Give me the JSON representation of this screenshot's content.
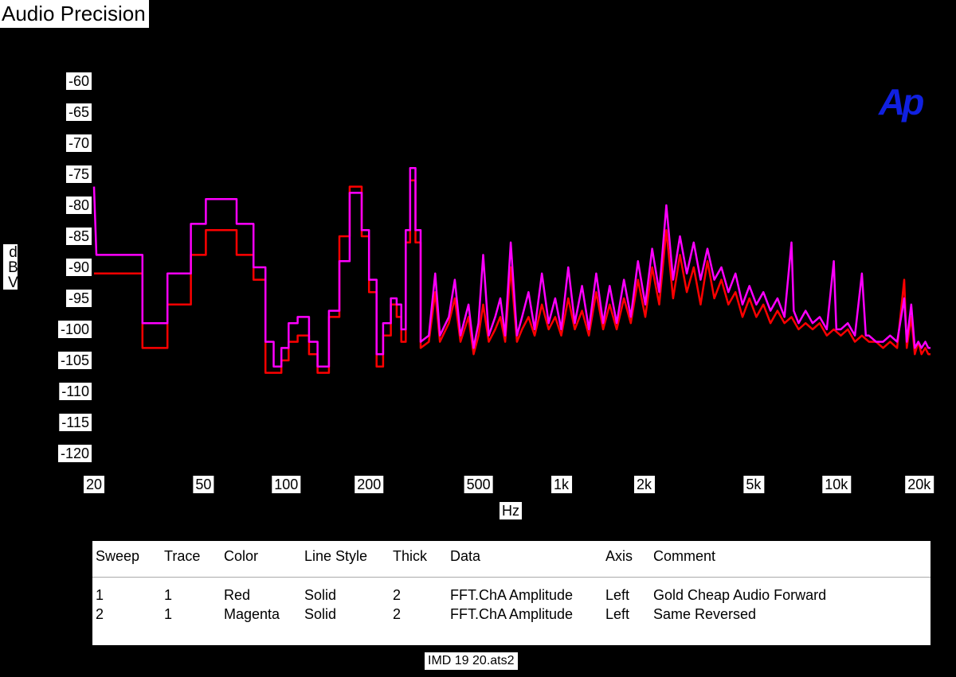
{
  "app_title": "Audio Precision",
  "logo_text": "Ap",
  "footer_file": "IMD 19 20.ats2",
  "chart_data": {
    "type": "line",
    "xscale": "log",
    "xlabel": "Hz",
    "ylabel": "dBV",
    "xlim": [
      20,
      22000
    ],
    "ylim": [
      -120,
      -60
    ],
    "x_ticks": [
      {
        "value": 20,
        "label": "20"
      },
      {
        "value": 50,
        "label": "50"
      },
      {
        "value": 100,
        "label": "100"
      },
      {
        "value": 200,
        "label": "200"
      },
      {
        "value": 500,
        "label": "500"
      },
      {
        "value": 1000,
        "label": "1k"
      },
      {
        "value": 2000,
        "label": "2k"
      },
      {
        "value": 5000,
        "label": "5k"
      },
      {
        "value": 10000,
        "label": "10k"
      },
      {
        "value": 20000,
        "label": "20k"
      }
    ],
    "y_ticks": [
      -60,
      -65,
      -70,
      -75,
      -80,
      -85,
      -90,
      -95,
      -100,
      -105,
      -110,
      -115,
      -120
    ],
    "series": [
      {
        "color": "#ff0000",
        "values": [
          [
            20,
            -91
          ],
          [
            30,
            -91
          ],
          [
            30,
            -103
          ],
          [
            37,
            -103
          ],
          [
            37,
            -96
          ],
          [
            45,
            -96
          ],
          [
            45,
            -88
          ],
          [
            51,
            -88
          ],
          [
            51,
            -84
          ],
          [
            66,
            -84
          ],
          [
            66,
            -88
          ],
          [
            76,
            -88
          ],
          [
            76,
            -92
          ],
          [
            84,
            -92
          ],
          [
            84,
            -107
          ],
          [
            96,
            -107
          ],
          [
            96,
            -105
          ],
          [
            102,
            -105
          ],
          [
            102,
            -102
          ],
          [
            110,
            -102
          ],
          [
            110,
            -101
          ],
          [
            121,
            -101
          ],
          [
            121,
            -104
          ],
          [
            130,
            -104
          ],
          [
            130,
            -107
          ],
          [
            143,
            -107
          ],
          [
            143,
            -98
          ],
          [
            156,
            -98
          ],
          [
            156,
            -85
          ],
          [
            170,
            -85
          ],
          [
            170,
            -77
          ],
          [
            188,
            -77
          ],
          [
            188,
            -85
          ],
          [
            200,
            -85
          ],
          [
            200,
            -94
          ],
          [
            213,
            -94
          ],
          [
            213,
            -106
          ],
          [
            225,
            -106
          ],
          [
            225,
            -101
          ],
          [
            240,
            -101
          ],
          [
            240,
            -96
          ],
          [
            252,
            -96
          ],
          [
            252,
            -98
          ],
          [
            262,
            -98
          ],
          [
            262,
            -102
          ],
          [
            272,
            -102
          ],
          [
            272,
            -86
          ],
          [
            282,
            -86
          ],
          [
            282,
            -76
          ],
          [
            295,
            -76
          ],
          [
            295,
            -86
          ],
          [
            308,
            -86
          ],
          [
            308,
            -103
          ],
          [
            330,
            -102
          ],
          [
            348,
            -94
          ],
          [
            362,
            -102
          ],
          [
            390,
            -99
          ],
          [
            410,
            -95
          ],
          [
            430,
            -102
          ],
          [
            460,
            -98
          ],
          [
            480,
            -104
          ],
          [
            500,
            -101
          ],
          [
            520,
            -96
          ],
          [
            545,
            -102
          ],
          [
            575,
            -100
          ],
          [
            600,
            -98
          ],
          [
            625,
            -102
          ],
          [
            655,
            -90
          ],
          [
            690,
            -102
          ],
          [
            720,
            -100
          ],
          [
            760,
            -98
          ],
          [
            800,
            -101
          ],
          [
            850,
            -96
          ],
          [
            900,
            -100
          ],
          [
            950,
            -98
          ],
          [
            1000,
            -101
          ],
          [
            1060,
            -95
          ],
          [
            1120,
            -100
          ],
          [
            1190,
            -97
          ],
          [
            1260,
            -101
          ],
          [
            1340,
            -94
          ],
          [
            1420,
            -100
          ],
          [
            1500,
            -96
          ],
          [
            1590,
            -100
          ],
          [
            1690,
            -95
          ],
          [
            1790,
            -99
          ],
          [
            1900,
            -92
          ],
          [
            2020,
            -98
          ],
          [
            2140,
            -90
          ],
          [
            2270,
            -96
          ],
          [
            2410,
            -84
          ],
          [
            2550,
            -95
          ],
          [
            2700,
            -88
          ],
          [
            2860,
            -94
          ],
          [
            3030,
            -90
          ],
          [
            3210,
            -96
          ],
          [
            3400,
            -89
          ],
          [
            3600,
            -95
          ],
          [
            3820,
            -92
          ],
          [
            4050,
            -96
          ],
          [
            4300,
            -94
          ],
          [
            4560,
            -98
          ],
          [
            4830,
            -95
          ],
          [
            5120,
            -98
          ],
          [
            5430,
            -96
          ],
          [
            5760,
            -99
          ],
          [
            6110,
            -97
          ],
          [
            6480,
            -99
          ],
          [
            6870,
            -98
          ],
          [
            7290,
            -100
          ],
          [
            7730,
            -99
          ],
          [
            8200,
            -100
          ],
          [
            8700,
            -99
          ],
          [
            9230,
            -101
          ],
          [
            9790,
            -100
          ],
          [
            10380,
            -101
          ],
          [
            11010,
            -100
          ],
          [
            11680,
            -102
          ],
          [
            12390,
            -101
          ],
          [
            13140,
            -102
          ],
          [
            13940,
            -102
          ],
          [
            14790,
            -103
          ],
          [
            15690,
            -102
          ],
          [
            16640,
            -103
          ],
          [
            17650,
            -92
          ],
          [
            18030,
            -103
          ],
          [
            18720,
            -98
          ],
          [
            19290,
            -104
          ],
          [
            19860,
            -102
          ],
          [
            20400,
            -104
          ],
          [
            21060,
            -103
          ],
          [
            21600,
            -104
          ],
          [
            22000,
            -104
          ]
        ]
      },
      {
        "color": "#ff00ff",
        "values": [
          [
            20,
            -77
          ],
          [
            20.4,
            -88
          ],
          [
            30,
            -88
          ],
          [
            30,
            -99
          ],
          [
            37,
            -99
          ],
          [
            37,
            -91
          ],
          [
            45,
            -91
          ],
          [
            45,
            -83
          ],
          [
            51,
            -83
          ],
          [
            51,
            -79
          ],
          [
            66,
            -79
          ],
          [
            66,
            -83
          ],
          [
            76,
            -83
          ],
          [
            76,
            -90
          ],
          [
            84,
            -90
          ],
          [
            84,
            -102
          ],
          [
            90,
            -102
          ],
          [
            90,
            -106
          ],
          [
            96,
            -106
          ],
          [
            96,
            -103
          ],
          [
            102,
            -103
          ],
          [
            102,
            -99
          ],
          [
            110,
            -99
          ],
          [
            110,
            -98
          ],
          [
            121,
            -98
          ],
          [
            121,
            -102
          ],
          [
            130,
            -102
          ],
          [
            130,
            -106
          ],
          [
            143,
            -106
          ],
          [
            143,
            -97
          ],
          [
            156,
            -97
          ],
          [
            156,
            -89
          ],
          [
            170,
            -89
          ],
          [
            170,
            -78
          ],
          [
            188,
            -78
          ],
          [
            188,
            -84
          ],
          [
            200,
            -84
          ],
          [
            200,
            -92
          ],
          [
            213,
            -92
          ],
          [
            213,
            -104
          ],
          [
            225,
            -104
          ],
          [
            225,
            -99
          ],
          [
            240,
            -99
          ],
          [
            240,
            -95
          ],
          [
            252,
            -95
          ],
          [
            252,
            -96
          ],
          [
            262,
            -96
          ],
          [
            262,
            -100
          ],
          [
            272,
            -100
          ],
          [
            272,
            -84
          ],
          [
            282,
            -84
          ],
          [
            282,
            -74
          ],
          [
            295,
            -74
          ],
          [
            295,
            -84
          ],
          [
            308,
            -84
          ],
          [
            308,
            -102
          ],
          [
            330,
            -101
          ],
          [
            348,
            -91
          ],
          [
            362,
            -101
          ],
          [
            390,
            -98
          ],
          [
            410,
            -92
          ],
          [
            430,
            -101
          ],
          [
            460,
            -96
          ],
          [
            480,
            -103
          ],
          [
            500,
            -99
          ],
          [
            520,
            -88
          ],
          [
            545,
            -101
          ],
          [
            575,
            -98
          ],
          [
            600,
            -95
          ],
          [
            625,
            -101
          ],
          [
            655,
            -86
          ],
          [
            690,
            -101
          ],
          [
            720,
            -98
          ],
          [
            760,
            -94
          ],
          [
            800,
            -100
          ],
          [
            850,
            -91
          ],
          [
            900,
            -99
          ],
          [
            950,
            -95
          ],
          [
            1000,
            -100
          ],
          [
            1060,
            -90
          ],
          [
            1120,
            -99
          ],
          [
            1190,
            -93
          ],
          [
            1260,
            -100
          ],
          [
            1340,
            -91
          ],
          [
            1420,
            -99
          ],
          [
            1500,
            -93
          ],
          [
            1590,
            -99
          ],
          [
            1690,
            -92
          ],
          [
            1790,
            -98
          ],
          [
            1900,
            -89
          ],
          [
            2020,
            -96
          ],
          [
            2140,
            -87
          ],
          [
            2270,
            -94
          ],
          [
            2410,
            -80
          ],
          [
            2550,
            -92
          ],
          [
            2700,
            -85
          ],
          [
            2860,
            -91
          ],
          [
            3030,
            -86
          ],
          [
            3210,
            -92
          ],
          [
            3400,
            -87
          ],
          [
            3600,
            -92
          ],
          [
            3820,
            -90
          ],
          [
            4050,
            -94
          ],
          [
            4300,
            -91
          ],
          [
            4560,
            -96
          ],
          [
            4830,
            -93
          ],
          [
            5120,
            -96
          ],
          [
            5430,
            -94
          ],
          [
            5760,
            -97
          ],
          [
            6110,
            -95
          ],
          [
            6480,
            -98
          ],
          [
            6870,
            -86
          ],
          [
            7000,
            -97
          ],
          [
            7290,
            -99
          ],
          [
            7730,
            -97
          ],
          [
            8200,
            -99
          ],
          [
            8700,
            -98
          ],
          [
            9230,
            -100
          ],
          [
            9790,
            -89
          ],
          [
            10000,
            -100
          ],
          [
            10380,
            -100
          ],
          [
            11010,
            -99
          ],
          [
            11680,
            -101
          ],
          [
            12390,
            -91
          ],
          [
            12800,
            -101
          ],
          [
            13140,
            -101
          ],
          [
            13940,
            -102
          ],
          [
            14790,
            -102
          ],
          [
            15690,
            -101
          ],
          [
            16640,
            -102
          ],
          [
            17650,
            -95
          ],
          [
            18030,
            -102
          ],
          [
            18720,
            -96
          ],
          [
            19290,
            -103
          ],
          [
            19860,
            -102
          ],
          [
            20400,
            -103
          ],
          [
            21060,
            -102
          ],
          [
            21600,
            -103
          ],
          [
            22000,
            -103
          ]
        ]
      }
    ]
  },
  "legend": {
    "headers": [
      "Sweep",
      "Trace",
      "Color",
      "Line Style",
      "Thick",
      "Data",
      "Axis",
      "Comment"
    ],
    "rows": [
      [
        "1",
        "1",
        "Red",
        "Solid",
        "2",
        "FFT.ChA Amplitude",
        "Left",
        "Gold Cheap Audio Forward"
      ],
      [
        "2",
        "1",
        "Magenta",
        "Solid",
        "2",
        "FFT.ChA Amplitude",
        "Left",
        "Same Reversed"
      ]
    ]
  }
}
